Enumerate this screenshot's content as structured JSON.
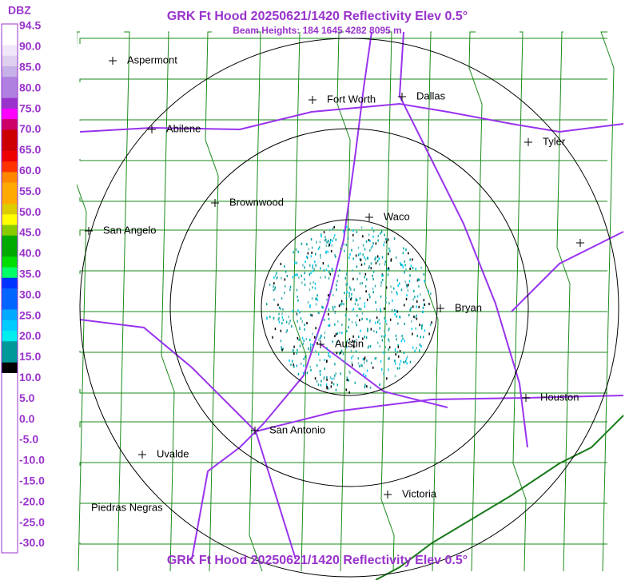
{
  "header": {
    "title": "GRK Ft Hood 20250621/1420 Reflectivity Elev 0.5°",
    "subtitle": "Beam Heights: 184 1645 4282 8095 m"
  },
  "footer": {
    "title": "GRK Ft Hood 20250621/1420 Reflectivity Elev 0.5°"
  },
  "legend": {
    "title": "DBZ",
    "labels": [
      "94.5",
      "90.0",
      "85.0",
      "80.0",
      "75.0",
      "70.0",
      "65.0",
      "60.0",
      "55.0",
      "50.0",
      "45.0",
      "40.0",
      "35.0",
      "30.0",
      "25.0",
      "20.0",
      "15.0",
      "10.0",
      "5.0",
      "0.0",
      "-5.0",
      "-10.0",
      "-15.0",
      "-20.0",
      "-25.0",
      "-30.0"
    ]
  },
  "cities": [
    "Aspermont",
    "Abilene",
    "Fort Worth",
    "Dallas",
    "Tyler",
    "Brownwood",
    "Waco",
    "San Angelo",
    "Bryan",
    "Austin",
    "Houston",
    "San Antonio",
    "Uvalde",
    "Victoria",
    "Piedras Negras"
  ]
}
